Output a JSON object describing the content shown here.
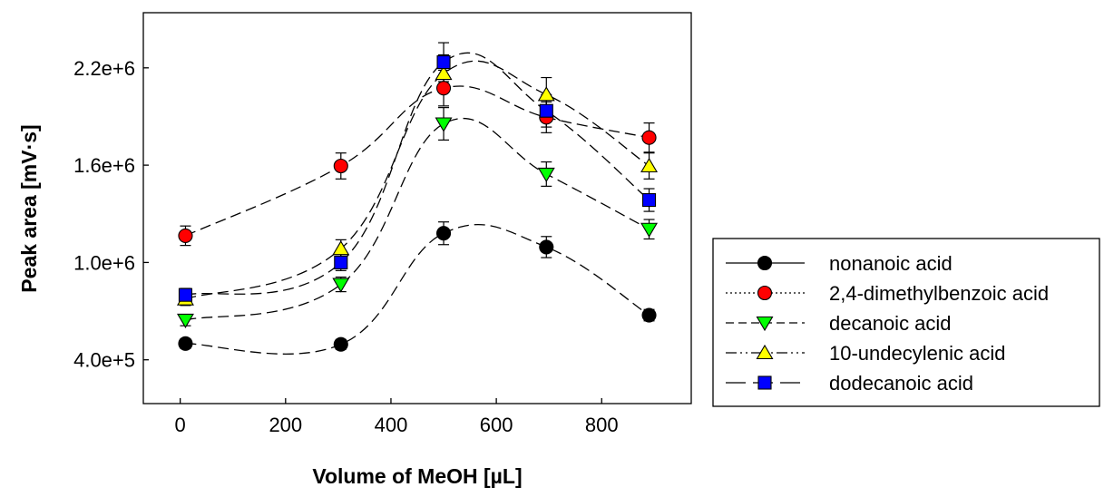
{
  "chart_data": {
    "type": "scatter",
    "xlabel": "Volume of MeOH [µL]",
    "ylabel": "Peak area [mV·s]",
    "xlim": [
      -70,
      970
    ],
    "ylim": [
      130000,
      2540000
    ],
    "xticks": [
      0,
      200,
      400,
      600,
      800
    ],
    "xtick_labels": [
      "0",
      "200",
      "400",
      "600",
      "800"
    ],
    "yticks": [
      400000,
      1000000,
      1600000,
      2200000
    ],
    "ytick_labels": [
      "4.0e+5",
      "1.0e+6",
      "1.6e+6",
      "2.2e+6"
    ],
    "grid": false,
    "legend_position": "right",
    "x": [
      10,
      305,
      500,
      695,
      890
    ],
    "series": [
      {
        "name": "nonanoic acid",
        "marker": "circle",
        "color": "#000000",
        "line_style": "solid",
        "values": [
          500000,
          495000,
          1180000,
          1095000,
          675000
        ],
        "errors": [
          30000,
          30000,
          70000,
          65000,
          35000
        ]
      },
      {
        "name": "2,4-dimethylbenzoic acid",
        "marker": "circle",
        "color": "#ff0000",
        "line_style": "dotted",
        "values": [
          1165000,
          1595000,
          2075000,
          1895000,
          1770000
        ],
        "errors": [
          60000,
          80000,
          110000,
          95000,
          90000
        ]
      },
      {
        "name": "decanoic acid",
        "marker": "triangle-down",
        "color": "#00ff00",
        "line_style": "dashed",
        "values": [
          645000,
          865000,
          1855000,
          1545000,
          1205000
        ],
        "errors": [
          35000,
          45000,
          100000,
          75000,
          60000
        ]
      },
      {
        "name": "10-undecylenic acid",
        "marker": "triangle-up",
        "color": "#ffff00",
        "line_style": "dash-dot-dot",
        "values": [
          775000,
          1085000,
          2165000,
          2035000,
          1595000
        ],
        "errors": [
          40000,
          55000,
          115000,
          105000,
          80000
        ]
      },
      {
        "name": "dodecanoic acid",
        "marker": "square",
        "color": "#0000ff",
        "line_style": "long-dash",
        "values": [
          800000,
          1000000,
          2235000,
          1935000,
          1385000
        ],
        "errors": [
          40000,
          50000,
          120000,
          100000,
          70000
        ]
      }
    ]
  }
}
